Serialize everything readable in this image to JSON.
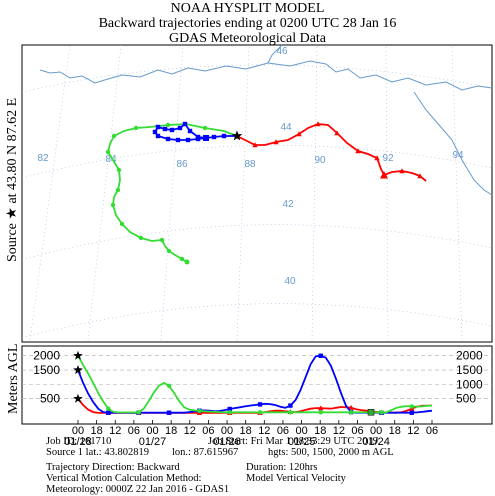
{
  "header": {
    "title": "NOAA HYSPLIT MODEL",
    "subtitle": "Backward trajectories ending at 0200 UTC 28 Jan 16",
    "data_source": "GDAS Meteorological Data"
  },
  "source_label": {
    "prefix": "Source",
    "at": "at",
    "lat": "43.80 N",
    "lon": "87.62 E"
  },
  "map": {
    "lon_labels": [
      "82",
      "84",
      "86",
      "88",
      "90",
      "92",
      "94"
    ],
    "lat_labels": [
      "46",
      "44",
      "42",
      "40"
    ]
  },
  "colors": {
    "red": "#ff0000",
    "blue": "#0000ff",
    "green": "#33dd33",
    "border": "#6699cc",
    "grid": "#99bbdd",
    "gridlabel": "#6699cc"
  },
  "chart_data": {
    "type": "line",
    "title": "",
    "ylabel": "Meters AGL",
    "ylim": [
      0,
      2200
    ],
    "yticks_left": [
      "2000",
      "1500",
      "500"
    ],
    "yticks_right": [
      "2000",
      "1500",
      "1000",
      "500"
    ],
    "xtick_hours": [
      "00",
      "18",
      "12",
      "06",
      "00",
      "18",
      "12",
      "06",
      "00",
      "18",
      "12",
      "06",
      "00",
      "18",
      "12",
      "06",
      "00",
      "18",
      "12",
      "06"
    ],
    "date_labels": [
      "01/28",
      "01/27",
      "01/26",
      "01/25",
      "01/24"
    ],
    "series": [
      {
        "color": "red",
        "height_m": [
          500,
          280,
          120,
          30,
          5,
          5,
          5,
          5,
          5,
          5,
          5,
          5,
          5,
          5,
          5,
          5,
          5,
          5,
          5,
          5,
          5,
          5,
          5,
          5,
          5,
          5,
          5,
          5,
          5,
          5,
          5,
          5,
          5,
          5,
          5,
          5,
          5,
          30,
          60,
          80,
          80,
          60,
          40,
          30,
          60,
          110,
          150,
          170,
          170,
          160,
          150,
          180,
          210,
          200,
          190,
          130,
          100,
          80,
          60,
          40,
          20,
          10,
          10,
          10,
          30,
          80,
          150,
          220,
          250,
          260,
          260
        ]
      },
      {
        "color": "blue",
        "height_m": [
          1500,
          1050,
          680,
          380,
          150,
          30,
          10,
          10,
          10,
          10,
          10,
          10,
          10,
          10,
          10,
          10,
          10,
          10,
          10,
          10,
          10,
          10,
          30,
          60,
          80,
          90,
          80,
          60,
          70,
          100,
          140,
          170,
          200,
          230,
          260,
          280,
          300,
          320,
          310,
          280,
          220,
          180,
          260,
          450,
          800,
          1250,
          1700,
          1980,
          2000,
          1930,
          1650,
          1200,
          700,
          250,
          30,
          10,
          10,
          10,
          10,
          10,
          10,
          10,
          10,
          10,
          10,
          10,
          10,
          20,
          40,
          60,
          80
        ]
      },
      {
        "color": "green",
        "height_m": [
          2000,
          1680,
          1380,
          1050,
          700,
          400,
          150,
          40,
          20,
          20,
          20,
          20,
          20,
          150,
          420,
          720,
          950,
          1050,
          950,
          700,
          420,
          200,
          120,
          90,
          70,
          60,
          50,
          40,
          30,
          25,
          25,
          25,
          25,
          25,
          25,
          25,
          25,
          25,
          25,
          25,
          25,
          25,
          25,
          25,
          25,
          25,
          25,
          25,
          25,
          25,
          25,
          25,
          25,
          25,
          25,
          25,
          25,
          25,
          25,
          25,
          25,
          25,
          100,
          180,
          220,
          240,
          230,
          220,
          230,
          250,
          260
        ]
      }
    ]
  },
  "info": {
    "job_id": "Job ID: 161710",
    "job_start": "Job Start: Fri Mar    1 08:33:29  UTC 2019",
    "source1_lat": "Source 1 lat.: 43.802819",
    "source1_lon": "lon.: 87.615967",
    "hgts": "hgts: 500, 1500, 2000 m   AGL",
    "direction": "Trajectory Direction: Backward",
    "duration": "Duration: 120hrs",
    "vertical": "Vertical Motion Calculation Method:",
    "vertical_value": "Model Vertical Velocity",
    "meteorology": "Meteorology: 0000Z 22 Jan 2016 - GDAS1"
  }
}
